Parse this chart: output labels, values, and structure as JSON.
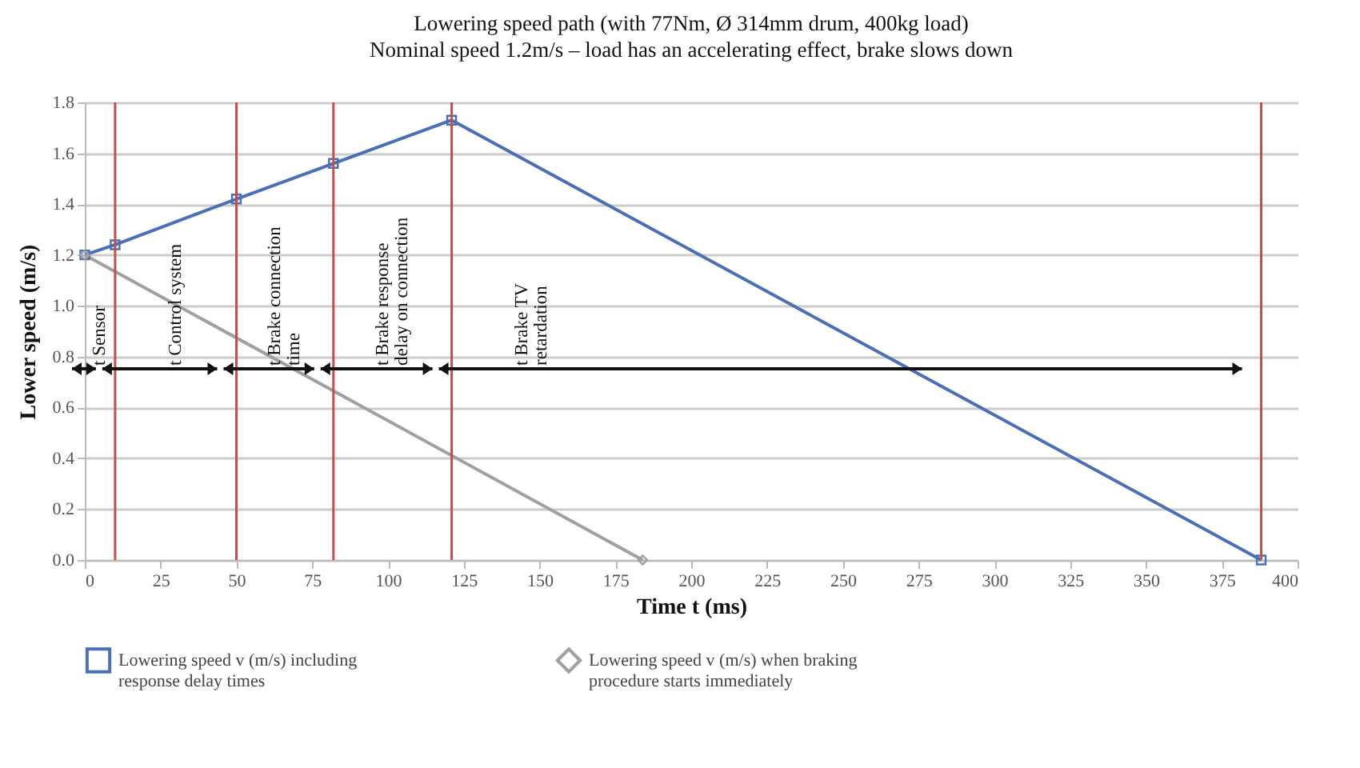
{
  "chart_data": {
    "type": "line",
    "title": "Lowering speed path (with 77Nm, Ø 314mm drum, 400kg load)",
    "subtitle": "Nominal speed 1.2m/s – load has an accelerating effect, brake slows down",
    "xlabel": "Time t (ms)",
    "ylabel": "Lower speed (m/s)",
    "series": [
      {
        "name": "Lowering speed v (m/s) including response delay times",
        "color": "#4a6fb5",
        "marker": "square",
        "x": [
          0,
          10,
          50,
          82,
          121,
          388
        ],
        "values": [
          1.2,
          1.24,
          1.42,
          1.56,
          1.73,
          0
        ]
      },
      {
        "name": "Lowering speed v (m/s) when braking procedure starts immediately",
        "color": "#a0a0a0",
        "marker": "diamond",
        "x": [
          0,
          184
        ],
        "values": [
          1.2,
          0
        ]
      }
    ],
    "xlim": [
      0,
      400
    ],
    "xticks": [
      0,
      25,
      50,
      75,
      100,
      125,
      150,
      175,
      200,
      225,
      250,
      275,
      300,
      325,
      350,
      375,
      400
    ],
    "ylim": [
      0,
      1.8
    ],
    "yticks": [
      {
        "value": 0,
        "label": "0.0"
      },
      0.2,
      0.4,
      0.6,
      0.8,
      {
        "value": 1,
        "label": "1.0"
      },
      1.2,
      1.4,
      1.6,
      1.8
    ],
    "ref_lines": [
      {
        "axis": "x",
        "value": 10,
        "color": "#c0504d"
      },
      {
        "axis": "x",
        "value": 50,
        "color": "#c0504d"
      },
      {
        "axis": "x",
        "value": 82,
        "color": "#c0504d"
      },
      {
        "axis": "x",
        "value": 121,
        "color": "#c0504d"
      },
      {
        "axis": "x",
        "value": 388,
        "color": "#c0504d"
      }
    ],
    "annotations": [
      "t Sensor",
      "t Control system",
      "t Brake connection time",
      "t Brake response delay on connection",
      "t Brake TV retardation"
    ],
    "grid": "y",
    "legend": "bottom",
    "line_style": "solid"
  }
}
